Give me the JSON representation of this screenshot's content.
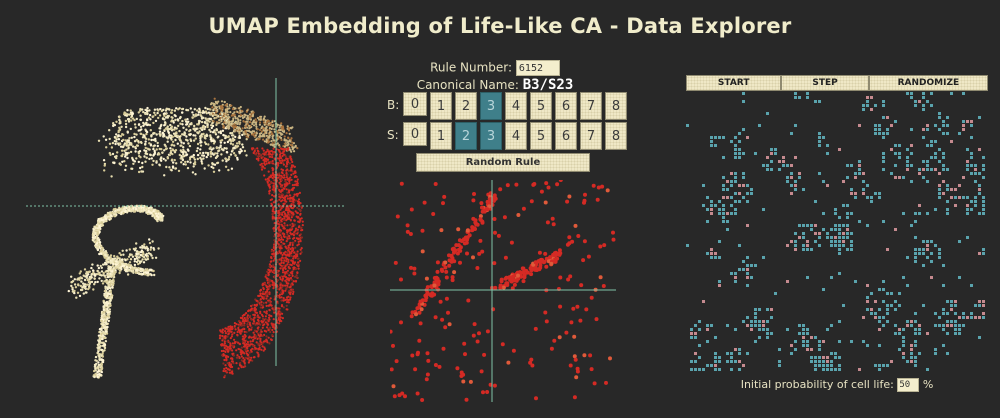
{
  "title": "UMAP Embedding of Life-Like CA - Data Explorer",
  "rule": {
    "number_label": "Rule Number:",
    "number_value": "6152",
    "canonical_label": "Canonical Name:",
    "canonical_value": "B3/S23"
  },
  "birth": {
    "label": "B:",
    "digits": [
      "0",
      "1",
      "2",
      "3",
      "4",
      "5",
      "6",
      "7",
      "8"
    ],
    "active": [
      3
    ]
  },
  "survival": {
    "label": "S:",
    "digits": [
      "0",
      "1",
      "2",
      "3",
      "4",
      "5",
      "6",
      "7",
      "8"
    ],
    "active": [
      2,
      3
    ]
  },
  "random_rule_label": "Random Rule",
  "ca_controls": {
    "start_label": "START",
    "step_label": "STEP",
    "randomize_label": "RANDOMIZE"
  },
  "probability": {
    "label": "Initial probability of cell life:",
    "value": "50",
    "unit": "%"
  },
  "colors": {
    "background": "#282828",
    "cream": "#efe8c6",
    "teal_on": "#3f7f8a",
    "highlight_red": "#d42a24",
    "crosshair": "#7fc4a8",
    "cell_teal": "#5aa3ad",
    "cell_pink": "#c58a8f"
  }
}
